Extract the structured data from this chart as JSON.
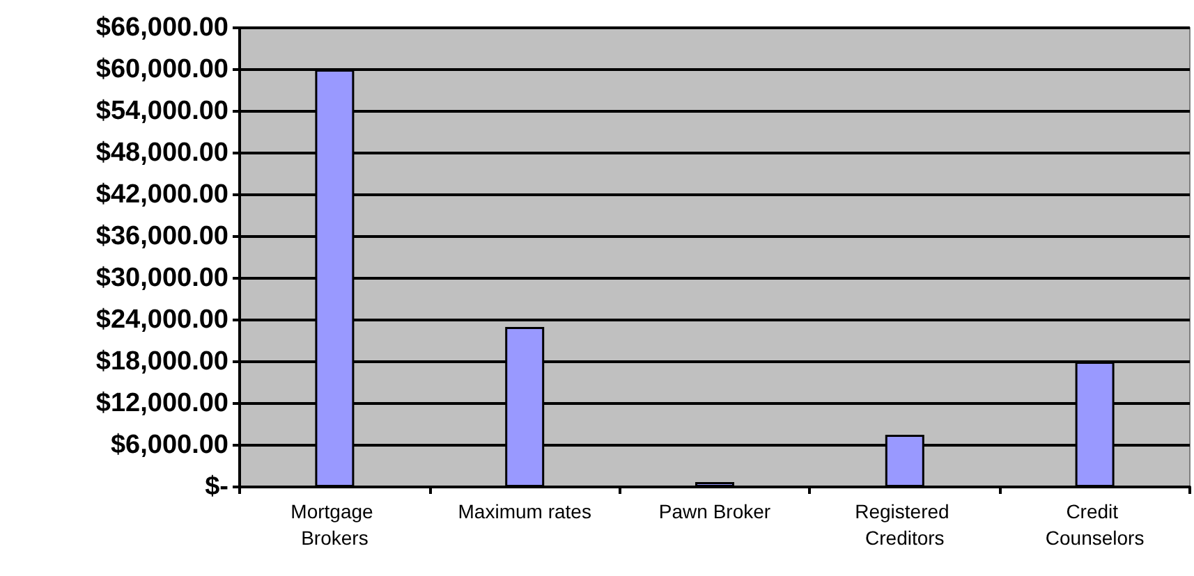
{
  "chart_data": {
    "type": "bar",
    "categories": [
      "Mortgage Brokers",
      "Maximum rates",
      "Pawn Broker",
      "Registered Creditors",
      "Credit Counselors"
    ],
    "values": [
      60000,
      23000,
      700,
      7500,
      18000
    ],
    "color": "#9999ff",
    "ylim": [
      0,
      66000
    ],
    "yticks": [
      {
        "value": 0,
        "label": "$-"
      },
      {
        "value": 6000,
        "label": "$6,000.00"
      },
      {
        "value": 12000,
        "label": "$12,000.00"
      },
      {
        "value": 18000,
        "label": "$18,000.00"
      },
      {
        "value": 24000,
        "label": "$24,000.00"
      },
      {
        "value": 30000,
        "label": "$30,000.00"
      },
      {
        "value": 36000,
        "label": "$36,000.00"
      },
      {
        "value": 42000,
        "label": "$42,000.00"
      },
      {
        "value": 48000,
        "label": "$48,000.00"
      },
      {
        "value": 54000,
        "label": "$54,000.00"
      },
      {
        "value": 60000,
        "label": "$60,000.00"
      },
      {
        "value": 66000,
        "label": "$66,000.00"
      }
    ],
    "grid": true
  }
}
